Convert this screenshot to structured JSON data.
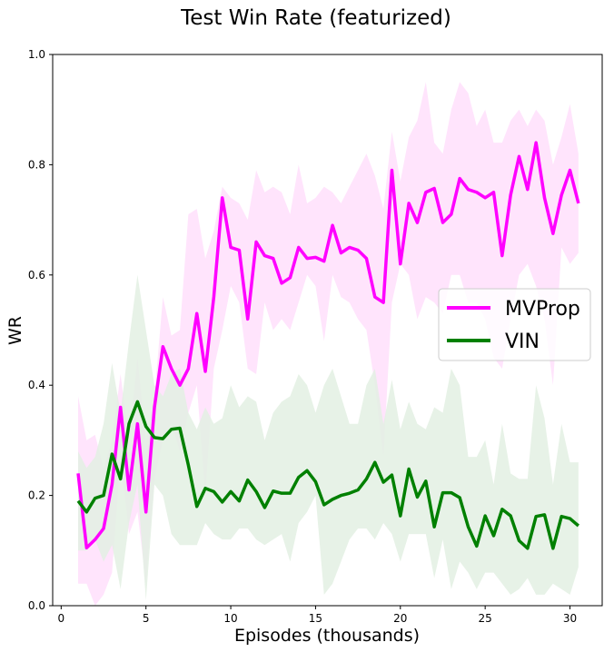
{
  "chart_data": {
    "type": "line",
    "title": "Test Win Rate (featurized)",
    "xlabel": "Episodes (thousands)",
    "ylabel": "WR",
    "xlim": [
      -0.5,
      31.9
    ],
    "ylim": [
      0,
      1
    ],
    "xticks": [
      0,
      5,
      10,
      15,
      20,
      25,
      30
    ],
    "yticks": [
      0.0,
      0.2,
      0.4,
      0.6,
      0.8,
      1.0
    ],
    "grid": false,
    "legend_position": "center-right",
    "x": [
      1,
      1.5,
      2,
      2.5,
      3,
      3.5,
      4,
      4.5,
      5,
      5.5,
      6,
      6.5,
      7,
      7.5,
      8,
      8.5,
      9,
      9.5,
      10,
      10.5,
      11,
      11.5,
      12,
      12.5,
      13,
      13.5,
      14,
      14.5,
      15,
      15.5,
      16,
      16.5,
      17,
      17.5,
      18,
      18.5,
      19,
      19.5,
      20,
      20.5,
      21,
      21.5,
      22,
      22.5,
      23,
      23.5,
      24,
      24.5,
      25,
      25.5,
      26,
      26.5,
      27,
      27.5,
      28,
      28.5,
      29,
      29.5,
      30,
      30.5
    ],
    "series": [
      {
        "name": "MVProp",
        "color": "#ff00ff",
        "band_color": "#ffe4fc",
        "values": [
          0.24,
          0.105,
          0.12,
          0.14,
          0.22,
          0.36,
          0.21,
          0.33,
          0.17,
          0.36,
          0.47,
          0.43,
          0.4,
          0.43,
          0.53,
          0.425,
          0.56,
          0.74,
          0.65,
          0.645,
          0.52,
          0.66,
          0.635,
          0.63,
          0.585,
          0.595,
          0.65,
          0.63,
          0.632,
          0.625,
          0.69,
          0.64,
          0.65,
          0.645,
          0.63,
          0.56,
          0.55,
          0.79,
          0.62,
          0.73,
          0.695,
          0.75,
          0.757,
          0.695,
          0.71,
          0.775,
          0.755,
          0.75,
          0.74,
          0.75,
          0.635,
          0.745,
          0.815,
          0.755,
          0.84,
          0.74,
          0.675,
          0.745,
          0.79,
          0.73
        ],
        "upper": [
          0.38,
          0.3,
          0.31,
          0.25,
          0.3,
          0.42,
          0.3,
          0.45,
          0.3,
          0.38,
          0.56,
          0.49,
          0.5,
          0.71,
          0.72,
          0.63,
          0.68,
          0.76,
          0.74,
          0.73,
          0.7,
          0.79,
          0.75,
          0.76,
          0.75,
          0.71,
          0.8,
          0.73,
          0.74,
          0.76,
          0.75,
          0.73,
          0.76,
          0.79,
          0.82,
          0.78,
          0.72,
          0.86,
          0.77,
          0.85,
          0.88,
          0.95,
          0.84,
          0.82,
          0.9,
          0.95,
          0.93,
          0.87,
          0.9,
          0.84,
          0.84,
          0.88,
          0.9,
          0.87,
          0.9,
          0.88,
          0.8,
          0.85,
          0.91,
          0.82
        ],
        "lower": [
          0.04,
          0.04,
          0.0,
          0.02,
          0.06,
          0.27,
          0.13,
          0.17,
          0.04,
          0.23,
          0.3,
          0.33,
          0.28,
          0.35,
          0.4,
          0.2,
          0.43,
          0.5,
          0.58,
          0.55,
          0.43,
          0.42,
          0.55,
          0.5,
          0.52,
          0.5,
          0.55,
          0.6,
          0.58,
          0.48,
          0.6,
          0.56,
          0.55,
          0.52,
          0.5,
          0.4,
          0.27,
          0.55,
          0.62,
          0.6,
          0.52,
          0.56,
          0.55,
          0.53,
          0.6,
          0.6,
          0.55,
          0.55,
          0.52,
          0.45,
          0.43,
          0.52,
          0.6,
          0.62,
          0.58,
          0.52,
          0.4,
          0.65,
          0.62,
          0.64
        ]
      },
      {
        "name": "VIN",
        "color": "#008000",
        "band_color": "#e3f0e3",
        "values": [
          0.19,
          0.17,
          0.195,
          0.2,
          0.275,
          0.23,
          0.33,
          0.37,
          0.325,
          0.305,
          0.303,
          0.32,
          0.322,
          0.255,
          0.18,
          0.213,
          0.207,
          0.188,
          0.207,
          0.19,
          0.228,
          0.207,
          0.178,
          0.208,
          0.204,
          0.204,
          0.233,
          0.245,
          0.225,
          0.183,
          0.193,
          0.2,
          0.204,
          0.21,
          0.23,
          0.26,
          0.224,
          0.237,
          0.163,
          0.248,
          0.197,
          0.226,
          0.143,
          0.205,
          0.205,
          0.196,
          0.143,
          0.108,
          0.163,
          0.127,
          0.175,
          0.163,
          0.118,
          0.104,
          0.162,
          0.165,
          0.104,
          0.162,
          0.158,
          0.145
        ],
        "upper": [
          0.28,
          0.25,
          0.27,
          0.33,
          0.44,
          0.35,
          0.48,
          0.6,
          0.5,
          0.4,
          0.38,
          0.42,
          0.43,
          0.35,
          0.32,
          0.36,
          0.33,
          0.34,
          0.4,
          0.36,
          0.38,
          0.37,
          0.3,
          0.35,
          0.37,
          0.38,
          0.42,
          0.4,
          0.35,
          0.4,
          0.43,
          0.38,
          0.33,
          0.33,
          0.4,
          0.43,
          0.33,
          0.41,
          0.32,
          0.37,
          0.33,
          0.32,
          0.36,
          0.35,
          0.43,
          0.4,
          0.27,
          0.27,
          0.3,
          0.22,
          0.33,
          0.24,
          0.23,
          0.23,
          0.4,
          0.34,
          0.22,
          0.33,
          0.26,
          0.26
        ],
        "lower": [
          0.1,
          0.1,
          0.12,
          0.08,
          0.11,
          0.03,
          0.15,
          0.22,
          0.01,
          0.22,
          0.2,
          0.13,
          0.11,
          0.11,
          0.11,
          0.15,
          0.13,
          0.12,
          0.12,
          0.14,
          0.14,
          0.12,
          0.11,
          0.12,
          0.13,
          0.08,
          0.15,
          0.17,
          0.2,
          0.02,
          0.04,
          0.08,
          0.12,
          0.14,
          0.14,
          0.12,
          0.15,
          0.13,
          0.08,
          0.13,
          0.13,
          0.13,
          0.05,
          0.12,
          0.03,
          0.08,
          0.06,
          0.03,
          0.06,
          0.06,
          0.04,
          0.02,
          0.03,
          0.05,
          0.02,
          0.02,
          0.04,
          0.03,
          0.02,
          0.07
        ]
      }
    ]
  }
}
